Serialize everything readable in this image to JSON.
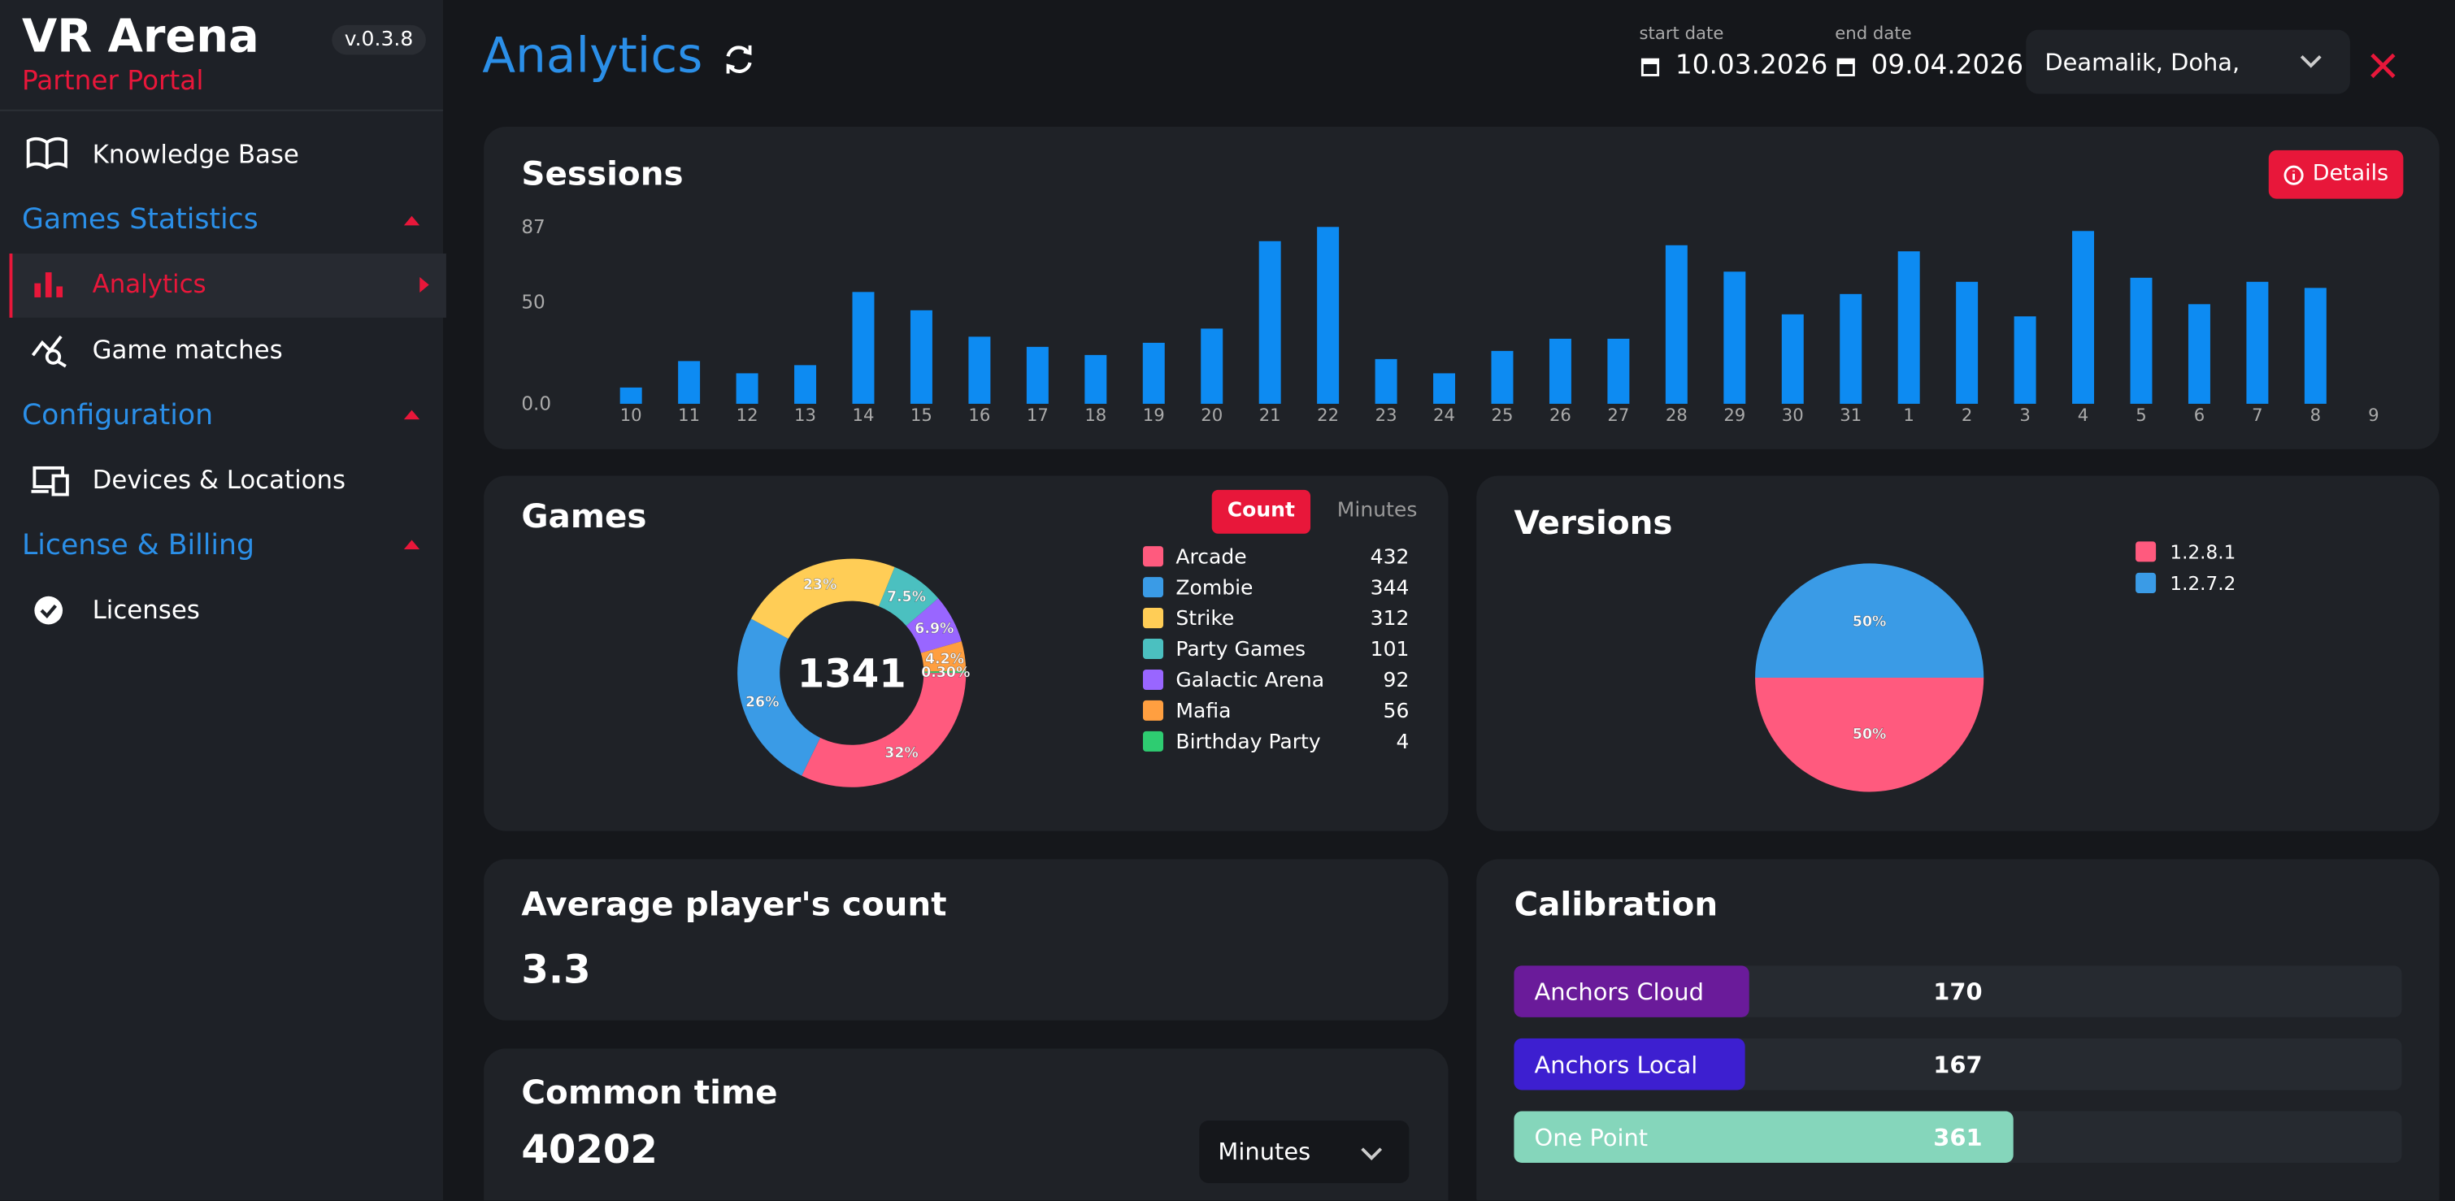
{
  "sidebar": {
    "brand": "VR Arena",
    "subtitle": "Partner Portal",
    "version": "v.0.3.8",
    "items": {
      "knowledge": "Knowledge Base",
      "games_statistics": "Games Statistics",
      "analytics": "Analytics",
      "game_matches": "Game matches",
      "configuration": "Configuration",
      "devices": "Devices & Locations",
      "license_billing": "License & Billing",
      "licenses": "Licenses"
    }
  },
  "header": {
    "title": "Analytics",
    "start_label": "start date",
    "start_date": "10.03.2026",
    "end_label": "end date",
    "end_date": "09.04.2026",
    "location": "Deamalik, Doha,"
  },
  "sessions": {
    "type": "bar",
    "title": "Sessions",
    "button": "Details",
    "color": "#0d8bf2",
    "categories": [
      "10",
      "11",
      "12",
      "13",
      "14",
      "15",
      "16",
      "17",
      "18",
      "19",
      "20",
      "21",
      "22",
      "23",
      "24",
      "25",
      "26",
      "27",
      "28",
      "29",
      "30",
      "31",
      "1",
      "2",
      "3",
      "4",
      "5",
      "6",
      "7",
      "8",
      "9"
    ],
    "values": [
      8,
      21,
      15,
      19,
      55,
      46,
      33,
      28,
      24,
      30,
      37,
      80,
      87,
      22,
      15,
      26,
      32,
      32,
      78,
      65,
      44,
      54,
      75,
      60,
      43,
      85,
      62,
      49,
      60,
      57,
      null
    ],
    "ylim": [
      0,
      87
    ],
    "yticks": [
      {
        "value": 0,
        "label": "0.0"
      },
      50,
      87
    ]
  },
  "games": {
    "type": "donut",
    "title": "Games",
    "tabs": [
      "Count",
      "Minutes"
    ],
    "total": 1341,
    "series": [
      {
        "name": "Arcade",
        "color": "#ff5a7e"
      },
      {
        "name": "Zombie",
        "color": "#3a9be6"
      },
      {
        "name": "Strike",
        "color": "#ffcd56"
      },
      {
        "name": "Party Games",
        "color": "#4bc0c0"
      },
      {
        "name": "Galactic Arena",
        "color": "#9966ff"
      },
      {
        "name": "Mafia",
        "color": "#ff9f40"
      },
      {
        "name": "Birthday Party",
        "color": "#2ecc71"
      }
    ],
    "values": [
      432,
      344,
      312,
      101,
      92,
      56,
      4
    ],
    "share_labels": [
      "32%",
      "26%",
      "23%",
      "7.5%",
      "6.9%",
      "4.2%",
      "0.30%"
    ]
  },
  "versions": {
    "type": "pie",
    "title": "Versions",
    "series": [
      {
        "name": "1.2.8.1",
        "color": "#ff5a7e"
      },
      {
        "name": "1.2.7.2",
        "color": "#3a9be6"
      }
    ],
    "values": [
      50,
      50
    ],
    "value_labels": [
      "50%",
      "50%"
    ]
  },
  "average": {
    "title": "Average player's count",
    "value": 3.3
  },
  "common_time": {
    "title": "Common time",
    "value": 40202,
    "unit": "Minutes"
  },
  "calibration": {
    "type": "hbar",
    "title": "Calibration",
    "categories": [
      "Anchors Cloud",
      "Anchors Local",
      "One Point"
    ],
    "colors": [
      "#6a1b9a",
      "#3d1fd0",
      "#85d6bb"
    ],
    "values": [
      170,
      167,
      361
    ]
  }
}
